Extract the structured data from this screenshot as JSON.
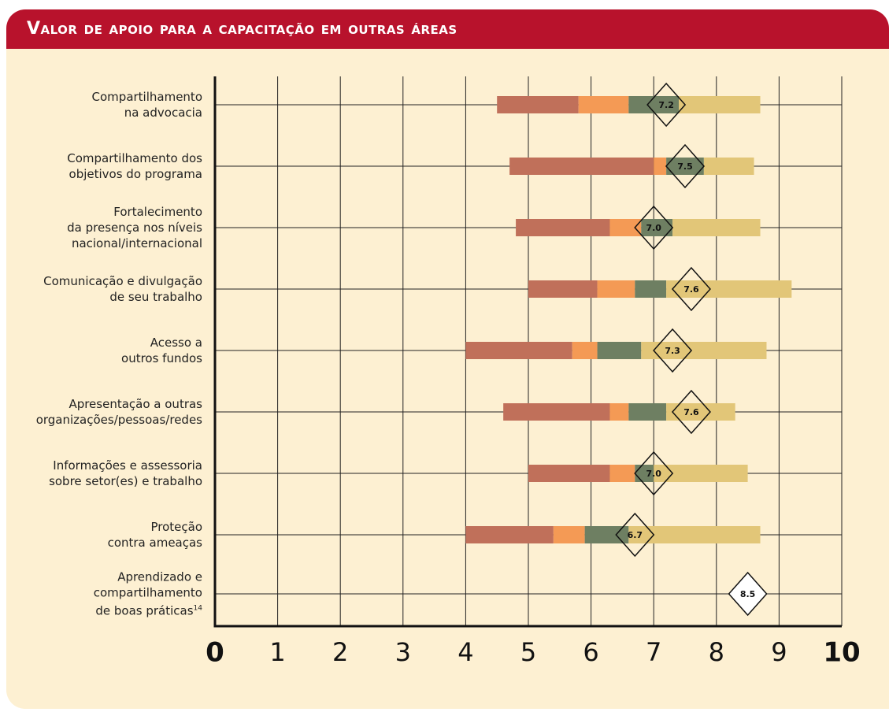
{
  "chart_data": {
    "type": "range_bar",
    "title": "Valor de apoio para a capacitação em outras áreas",
    "categories": [
      "Compartilhamento\nna advocacia",
      "Compartilhamento dos\nobjetivos do programa",
      "Fortalecimento\nda presença nos níveis\nnacional/internacional",
      "Comunicação e divulgação\nde seu trabalho",
      "Acesso a\noutros fundos",
      "Apresentação a outras\norganizações/pessoas/redes",
      "Informações e assessoria\nsobre setor(es) e trabalho",
      "Proteção\ncontra ameaças",
      "Aprendizado e\ncompartilhamento\nde boas práticas"
    ],
    "footnote_mark": "14",
    "series": [
      {
        "color": "#c0705a",
        "ranges": [
          [
            4.5,
            5.8
          ],
          [
            4.7,
            7.0
          ],
          [
            4.8,
            6.3
          ],
          [
            5.0,
            6.1
          ],
          [
            4.0,
            5.7
          ],
          [
            4.6,
            6.3
          ],
          [
            5.0,
            6.3
          ],
          [
            4.0,
            5.4
          ],
          null
        ]
      },
      {
        "color": "#f49a55",
        "ranges": [
          [
            5.8,
            6.6
          ],
          [
            7.0,
            7.2
          ],
          [
            6.3,
            6.8
          ],
          [
            6.1,
            6.7
          ],
          [
            5.7,
            6.1
          ],
          [
            6.3,
            6.6
          ],
          [
            6.3,
            6.7
          ],
          [
            5.4,
            5.9
          ],
          null
        ]
      },
      {
        "color": "#6e7f62",
        "ranges": [
          [
            6.6,
            7.4
          ],
          [
            7.2,
            7.8
          ],
          [
            6.8,
            7.3
          ],
          [
            6.7,
            7.2
          ],
          [
            6.1,
            6.8
          ],
          [
            6.6,
            7.2
          ],
          [
            6.7,
            7.0
          ],
          [
            5.9,
            6.6
          ],
          null
        ]
      },
      {
        "color": "#e2c678",
        "ranges": [
          [
            7.4,
            8.7
          ],
          [
            7.8,
            8.6
          ],
          [
            7.3,
            8.7
          ],
          [
            7.2,
            9.2
          ],
          [
            6.8,
            8.8
          ],
          [
            7.2,
            8.3
          ],
          [
            7.0,
            8.5
          ],
          [
            6.6,
            8.7
          ],
          null
        ]
      }
    ],
    "means": [
      7.2,
      7.5,
      7.0,
      7.6,
      7.3,
      7.6,
      7.0,
      6.7,
      8.5
    ],
    "mean_labels": [
      "7.2",
      "7.5",
      "7.0",
      "7.6",
      "7.3",
      "7.6",
      "7.0",
      "6.7",
      "8.5"
    ],
    "xlim": [
      0,
      10
    ],
    "xticks": [
      0,
      1,
      2,
      3,
      4,
      5,
      6,
      7,
      8,
      9,
      10
    ],
    "grid": true
  }
}
